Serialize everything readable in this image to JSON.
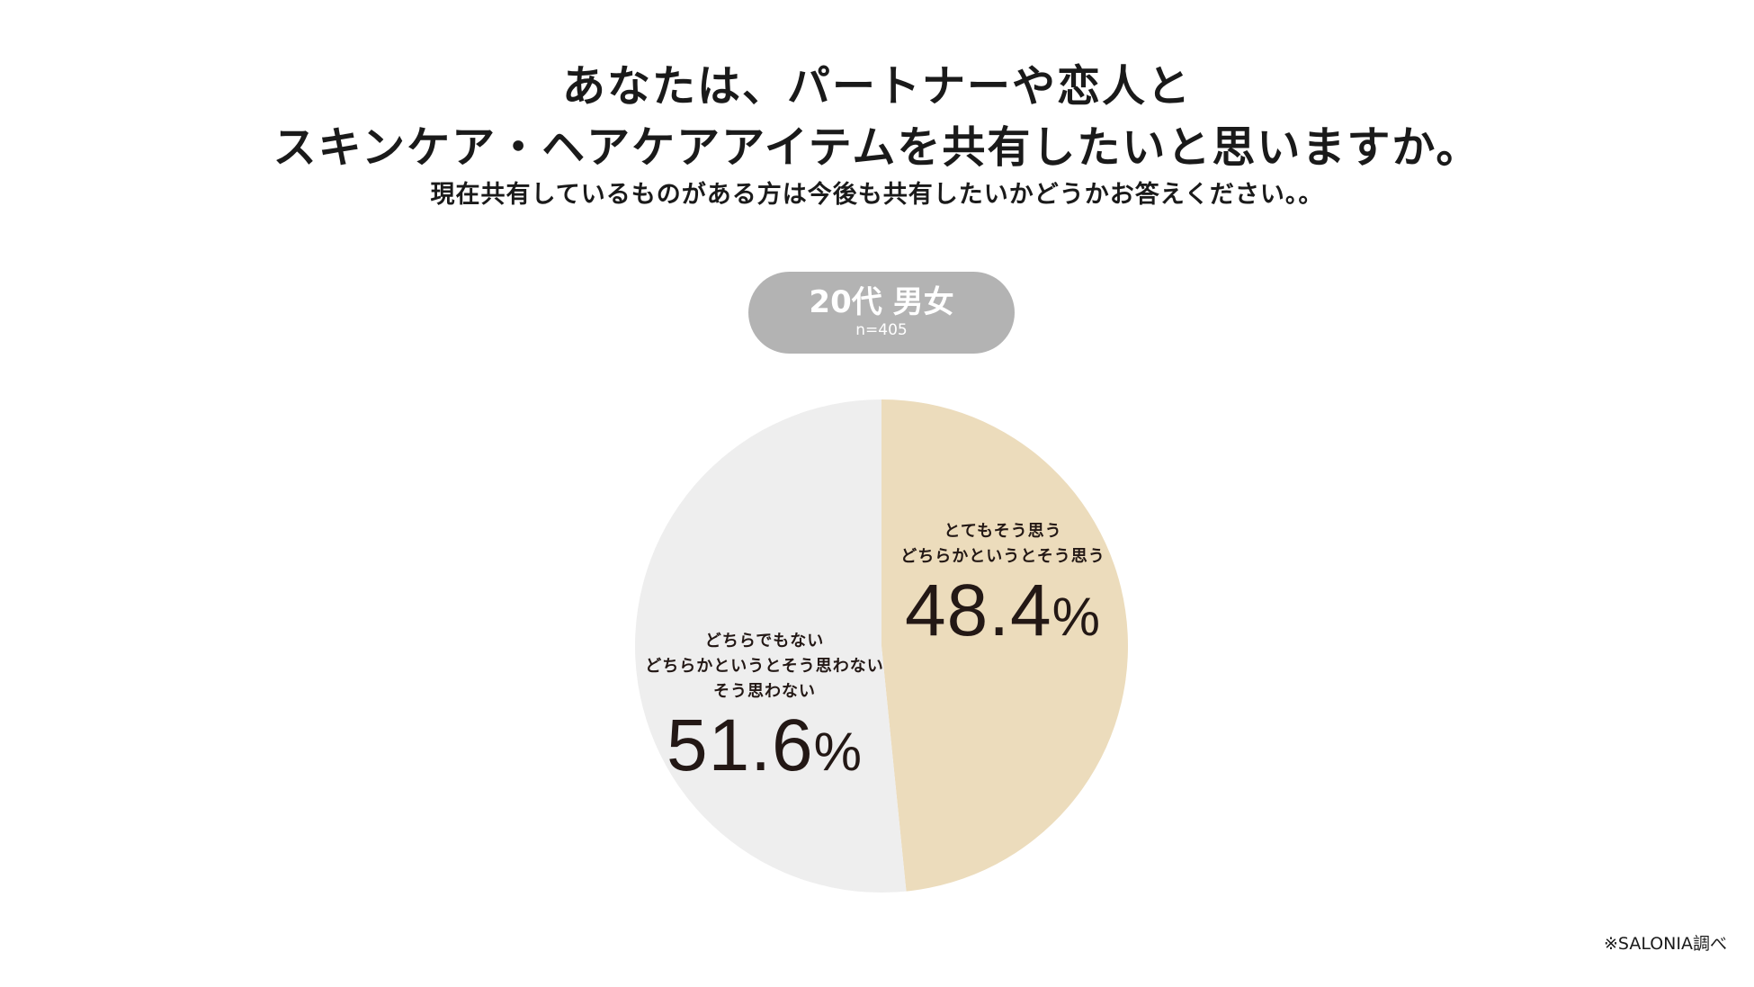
{
  "title_lines": [
    "あなたは、パートナーや恋人と",
    "スキンケア・ヘアケアアイテムを共有したいと思いますか。"
  ],
  "subtitle": "現在共有しているものがある方は今後も共有したいかどうかお答えください。。",
  "badge": {
    "label": "20代 男女",
    "n": "n=405"
  },
  "chart_data": {
    "type": "pie",
    "series": [
      {
        "lines": [
          "とてもそう思う",
          "どちらかというとそう思う"
        ],
        "value": 48.4,
        "value_label": "48.4",
        "unit": "%",
        "color": "#ecdcbc"
      },
      {
        "lines": [
          "どちらでもない",
          "どちらかというとそう思わない",
          "そう思わない"
        ],
        "value": 51.6,
        "value_label": "51.6",
        "unit": "%",
        "color": "#eeeeee"
      }
    ],
    "start": "12-o'clock",
    "direction": "clockwise"
  },
  "source": "※SALONIA調べ"
}
